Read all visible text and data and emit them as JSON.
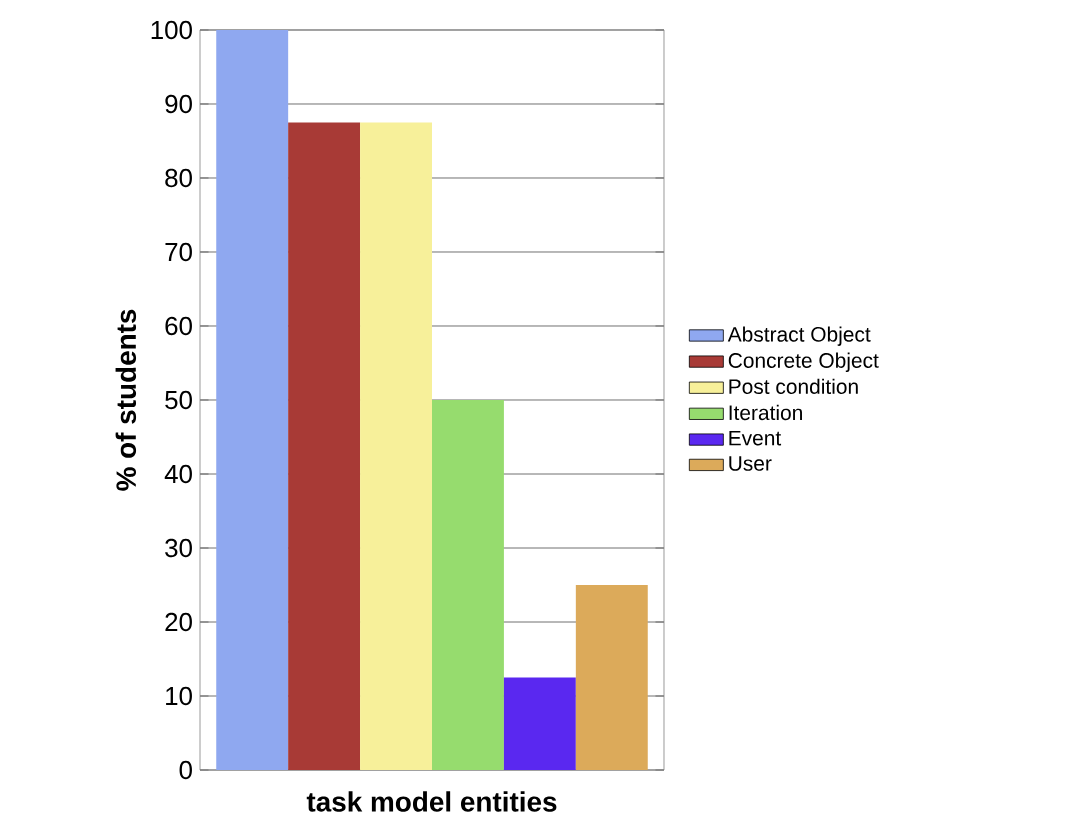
{
  "chart_data": {
    "type": "bar",
    "xlabel": "task model entities",
    "ylabel": "% of students",
    "categories": [
      null
    ],
    "series": [
      {
        "name": "Abstract Object",
        "color": "#8fa8f0",
        "values": [
          100
        ]
      },
      {
        "name": "Concrete Object",
        "color": "#a83a36",
        "values": [
          87.5
        ]
      },
      {
        "name": "Post condition",
        "color": "#f7f09a",
        "values": [
          87.5
        ]
      },
      {
        "name": "Iteration",
        "color": "#96dc6e",
        "values": [
          50
        ]
      },
      {
        "name": "Event",
        "color": "#5a28f0",
        "values": [
          12.5
        ]
      },
      {
        "name": "User",
        "color": "#dcaa5a",
        "values": [
          25
        ]
      }
    ],
    "ylim": [
      0,
      100
    ],
    "yticks": [
      0,
      10,
      20,
      30,
      40,
      50,
      60,
      70,
      80,
      90,
      100
    ],
    "grid": "y",
    "legend": "right"
  }
}
